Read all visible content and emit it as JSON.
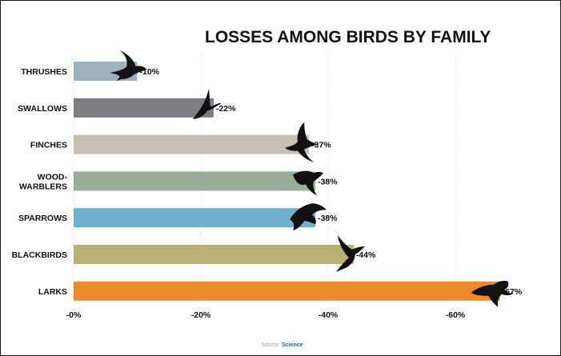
{
  "chart_data": {
    "type": "bar",
    "orientation": "horizontal",
    "title": "LOSSES AMONG BIRDS BY FAMILY",
    "categories": [
      "THRUSHES",
      "SWALLOWS",
      "FINCHES",
      "WOOD-WARBLERS",
      "SPARROWS",
      "BLACKBIRDS",
      "LARKS"
    ],
    "category_lines": [
      [
        "THRUSHES"
      ],
      [
        "SWALLOWS"
      ],
      [
        "FINCHES"
      ],
      [
        "WOOD-",
        "WARBLERS"
      ],
      [
        "SPARROWS"
      ],
      [
        "BLACKBIRDS"
      ],
      [
        "LARKS"
      ]
    ],
    "values": [
      -10,
      -22,
      -37,
      -38,
      -38,
      -44,
      -67
    ],
    "value_labels": [
      "-10%",
      "-22%",
      "-37%",
      "-38%",
      "-38%",
      "-44%",
      "-67%"
    ],
    "bar_colors": [
      "#9fb0bf",
      "#7d7c82",
      "#c5bfb6",
      "#9aad98",
      "#6fb0cc",
      "#b6b274",
      "#ef8a2a"
    ],
    "xlim": [
      0,
      -70
    ],
    "xticks": [
      0,
      -20,
      -40,
      -60
    ],
    "xtick_labels": [
      "-0%",
      "-20%",
      "-40%",
      "-60%"
    ],
    "grid": true,
    "legend": "none"
  },
  "source": {
    "prefix": "Source:",
    "name": "Science"
  }
}
